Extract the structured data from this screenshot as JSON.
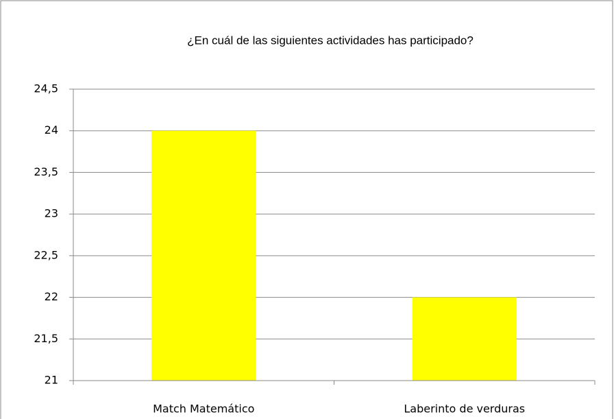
{
  "chart_data": {
    "type": "bar",
    "title": "¿En cuál de las siguientes actividades has participado?",
    "categories": [
      "Match Matemático",
      "Laberinto de verduras"
    ],
    "values": [
      24,
      22
    ],
    "color": "#ffff00",
    "ylim": [
      21,
      24.5
    ],
    "yticks": [
      21,
      {
        "value": 21.5,
        "label": "21,5"
      },
      22,
      {
        "value": 22.5,
        "label": "22,5"
      },
      23,
      {
        "value": 23.5,
        "label": "23,5"
      },
      24,
      {
        "value": 24.5,
        "label": "24,5"
      }
    ],
    "grid": true
  }
}
